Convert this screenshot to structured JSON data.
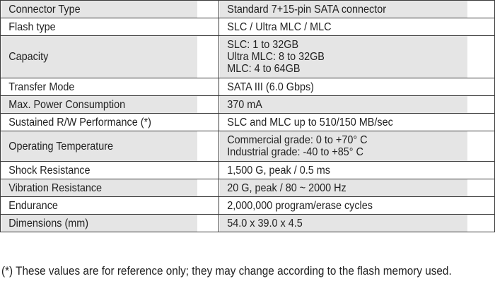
{
  "specs": [
    {
      "label": "Connector Type",
      "values": [
        "Standard 7+15-pin SATA connector"
      ],
      "shaded": true
    },
    {
      "label": "Flash type",
      "values": [
        "SLC / Ultra MLC / MLC"
      ],
      "shaded": false
    },
    {
      "label": "Capacity",
      "values": [
        "SLC: 1 to 32GB",
        "Ultra MLC: 8 to 32GB",
        "MLC: 4 to 64GB"
      ],
      "shaded": true
    },
    {
      "label": "Transfer Mode",
      "values": [
        "SATA III (6.0 Gbps)"
      ],
      "shaded": false
    },
    {
      "label": "Max. Power Consumption",
      "values": [
        "370 mA"
      ],
      "shaded": true
    },
    {
      "label": "Sustained R/W Performance (*)",
      "values": [
        "SLC and MLC up to 510/150 MB/sec"
      ],
      "shaded": false
    },
    {
      "label": "Operating Temperature",
      "values": [
        "Commercial grade: 0 to +70° C",
        "Industrial grade: -40 to +85° C"
      ],
      "shaded": true
    },
    {
      "label": "Shock Resistance",
      "values": [
        "1,500 G, peak / 0.5 ms"
      ],
      "shaded": false
    },
    {
      "label": "Vibration Resistance",
      "values": [
        "20 G, peak / 80 ~ 2000 Hz"
      ],
      "shaded": true
    },
    {
      "label": "Endurance",
      "values": [
        "2,000,000 program/erase cycles"
      ],
      "shaded": false
    },
    {
      "label": "Dimensions (mm)",
      "values": [
        "54.0 x 39.0 x 4.5"
      ],
      "shaded": true
    }
  ],
  "footnote": "(*) These values are for reference only; they may change according to the flash memory used.",
  "colors": {
    "shaded_row": "#e5e5e5",
    "plain_row": "#ffffff",
    "border": "#3a3a3a",
    "text": "#222222"
  }
}
